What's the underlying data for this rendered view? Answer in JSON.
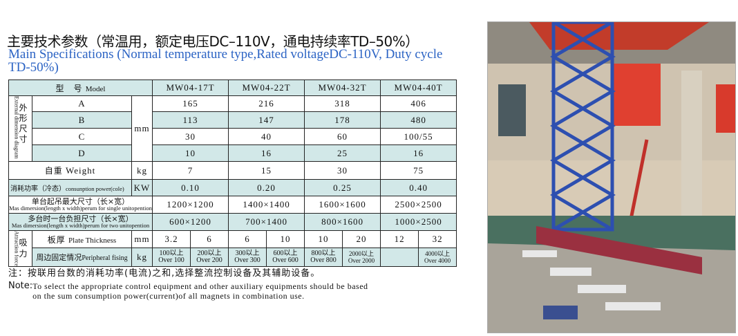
{
  "title_cn": "主要技术参数（常温用，额定电压DC–110V，通电持续率TD–50%）",
  "title_en": "Main Specifications (Normal temperature type,Rated voltageDC-110V, Duty cycle TD-50%)",
  "table": {
    "model_label": "型　号",
    "model_label_en": "Model",
    "models": [
      "MW04-17T",
      "MW04-22T",
      "MW04-32T",
      "MW04-40T"
    ],
    "ext_dim_cn": "外形尺寸",
    "ext_dim_en": "External dimension diagram",
    "dim_unit": "mm",
    "dims": [
      {
        "label": "A",
        "values": [
          "165",
          "216",
          "318",
          "406"
        ]
      },
      {
        "label": "B",
        "values": [
          "113",
          "147",
          "178",
          "480"
        ]
      },
      {
        "label": "C",
        "values": [
          "30",
          "40",
          "60",
          "100/55"
        ]
      },
      {
        "label": "D",
        "values": [
          "10",
          "16",
          "25",
          "16"
        ]
      }
    ],
    "weight": {
      "label_cn": "自重",
      "label_en": "Weight",
      "unit": "kg",
      "values": [
        "7",
        "15",
        "30",
        "75"
      ]
    },
    "power": {
      "label_cn": "消耗功率（冷态）",
      "label_en": "consunption power(cole)",
      "unit": "KW",
      "values": [
        "0.10",
        "0.20",
        "0.25",
        "0.40"
      ]
    },
    "single": {
      "label_cn": "单台起吊最大尺寸（长×宽）",
      "label_en": "Mas dimersion(length x width)perum for single unitopention",
      "values": [
        "1200×1200",
        "1400×1400",
        "1600×1600",
        "2500×2500"
      ]
    },
    "multi": {
      "label_cn": "多台时一台负担尺寸（长×宽）",
      "label_en": "Mas dimersion(length x width)perum for two  unitopention",
      "values": [
        "600×1200",
        "700×1400",
        "800×1600",
        "1000×2500"
      ]
    },
    "attraction_cn": "吸力",
    "attraction_en": "Attraction force",
    "plate": {
      "label_cn": "板厚",
      "label_en": "Plate Thickness",
      "unit": "mm",
      "values": [
        "3.2",
        "6",
        "6",
        "10",
        "10",
        "20",
        "12",
        "32"
      ]
    },
    "peripheral": {
      "label_cn": "周边固定情况",
      "label_en": "Peripheral fising",
      "unit": "kg",
      "values": [
        {
          "cn": "100以上",
          "en": "Over 100"
        },
        {
          "cn": "200以上",
          "en": "Over 200"
        },
        {
          "cn": "300以上",
          "en": "Over 300"
        },
        {
          "cn": "600以上",
          "en": "Over 600"
        },
        {
          "cn": "800以上",
          "en": "Over 800"
        },
        {
          "cn": "2000以上",
          "en": "Over 2000"
        },
        {
          "cn": "",
          "en": ""
        },
        {
          "cn": "4000以上",
          "en": "Over 4000"
        }
      ]
    }
  },
  "note_cn": "注：按联用台数的消耗功率(电流)之和,选择整流控制设备及其辅助设备。",
  "note_en_label": "Note:",
  "note_en": "To select the appropriate control equipment and other auxiliary equipments should be based  on the sum consumption power(current)of all magnets in combination use.",
  "colors": {
    "title_en": "#2b63c4",
    "fill": "#d2e8e8"
  }
}
